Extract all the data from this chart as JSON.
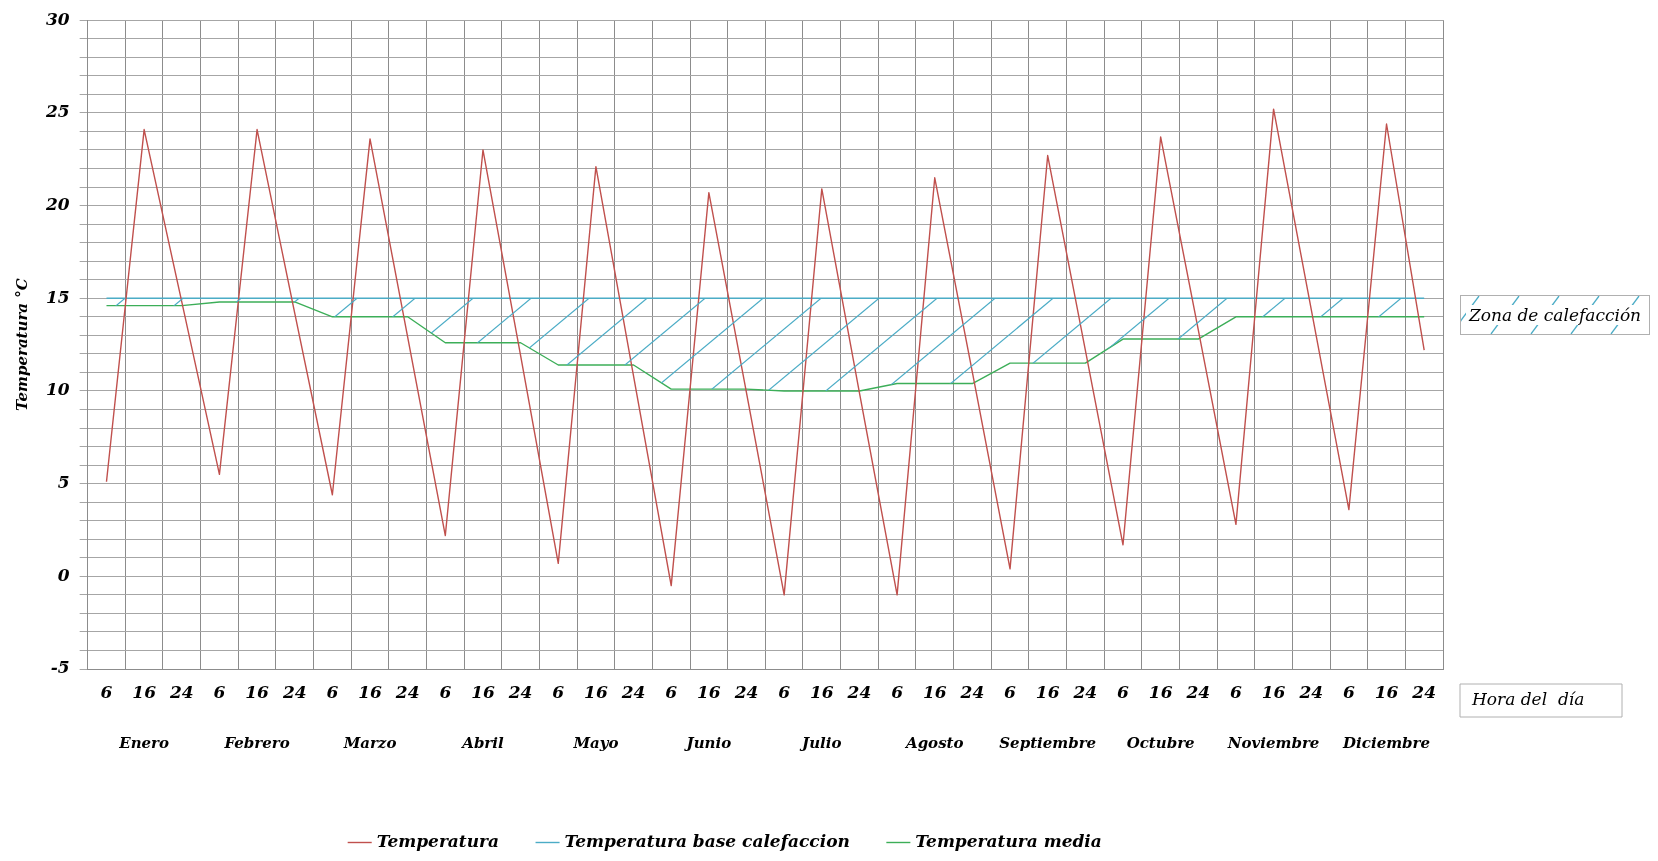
{
  "chart_data": {
    "type": "line",
    "ylabel": "Temperatura °C",
    "xlabel": "Hora del  día",
    "categories": [
      "6",
      "16",
      "24",
      "6",
      "16",
      "24",
      "6",
      "16",
      "24",
      "6",
      "16",
      "24",
      "6",
      "16",
      "24",
      "6",
      "16",
      "24",
      "6",
      "16",
      "24",
      "6",
      "16",
      "24",
      "6",
      "16",
      "24",
      "6",
      "16",
      "24",
      "6",
      "16",
      "24",
      "6",
      "16",
      "24"
    ],
    "series": [
      {
        "name": "Temperatura",
        "color": "#c0504d",
        "values": [
          5.1,
          24.1,
          14.8,
          5.5,
          24.1,
          14.2,
          4.4,
          23.6,
          12.9,
          2.2,
          23.0,
          11.9,
          0.7,
          22.1,
          10.8,
          -0.5,
          20.7,
          9.9,
          -1.0,
          20.9,
          9.9,
          -1.0,
          21.5,
          11.0,
          0.4,
          22.7,
          12.2,
          1.7,
          23.7,
          13.3,
          2.8,
          25.2,
          14.4,
          3.6,
          24.4,
          12.2
        ]
      },
      {
        "name": "Temperatura base calefaccion",
        "color": "#4bacc6",
        "values": [
          15,
          15,
          15,
          15,
          15,
          15,
          15,
          15,
          15,
          15,
          15,
          15,
          15,
          15,
          15,
          15,
          15,
          15,
          15,
          15,
          15,
          15,
          15,
          15,
          15,
          15,
          15,
          15,
          15,
          15,
          15,
          15,
          15,
          15,
          15,
          15
        ]
      },
      {
        "name": "Temperatura media",
        "color": "#3cae58",
        "values": [
          14.6,
          14.6,
          14.6,
          14.8,
          14.8,
          14.8,
          14.0,
          14.0,
          14.0,
          12.6,
          12.6,
          12.6,
          11.4,
          11.4,
          11.4,
          10.1,
          10.1,
          10.1,
          10.0,
          10.0,
          10.0,
          10.4,
          10.4,
          10.4,
          11.5,
          11.5,
          11.5,
          12.8,
          12.8,
          12.8,
          14.0,
          14.0,
          14.0,
          14.0,
          14.0,
          14.0
        ]
      }
    ],
    "annotations": [
      "Enero",
      "Febrero",
      "Marzo",
      "Abril",
      "Mayo",
      "Junio",
      "Julio",
      "Agosto",
      "Septiembre",
      "Octubre",
      "Noviembre",
      "Diciembre",
      "Zona de calefacción"
    ],
    "ylim": [
      -5,
      30
    ],
    "yticks": [
      -5,
      {
        "value": -4,
        "label": null
      },
      {
        "value": -3,
        "label": null
      },
      {
        "value": -2,
        "label": null
      },
      {
        "value": -1,
        "label": null
      },
      0,
      {
        "value": 1,
        "label": null
      },
      {
        "value": 2,
        "label": null
      },
      {
        "value": 3,
        "label": null
      },
      {
        "value": 4,
        "label": null
      },
      5,
      {
        "value": 6,
        "label": null
      },
      {
        "value": 7,
        "label": null
      },
      {
        "value": 8,
        "label": null
      },
      {
        "value": 9,
        "label": null
      },
      10,
      {
        "value": 11,
        "label": null
      },
      {
        "value": 12,
        "label": null
      },
      {
        "value": 13,
        "label": null
      },
      {
        "value": 14,
        "label": null
      },
      15,
      {
        "value": 16,
        "label": null
      },
      {
        "value": 17,
        "label": null
      },
      {
        "value": 18,
        "label": null
      },
      {
        "value": 19,
        "label": null
      },
      20,
      {
        "value": 21,
        "label": null
      },
      {
        "value": 22,
        "label": null
      },
      {
        "value": 23,
        "label": null
      },
      {
        "value": 24,
        "label": null
      },
      25,
      {
        "value": 26,
        "label": null
      },
      {
        "value": 27,
        "label": null
      },
      {
        "value": 28,
        "label": null
      },
      {
        "value": 29,
        "label": null
      },
      30
    ],
    "grid": true,
    "legend": "bottom",
    "marker": "none",
    "line_style": "solid"
  }
}
